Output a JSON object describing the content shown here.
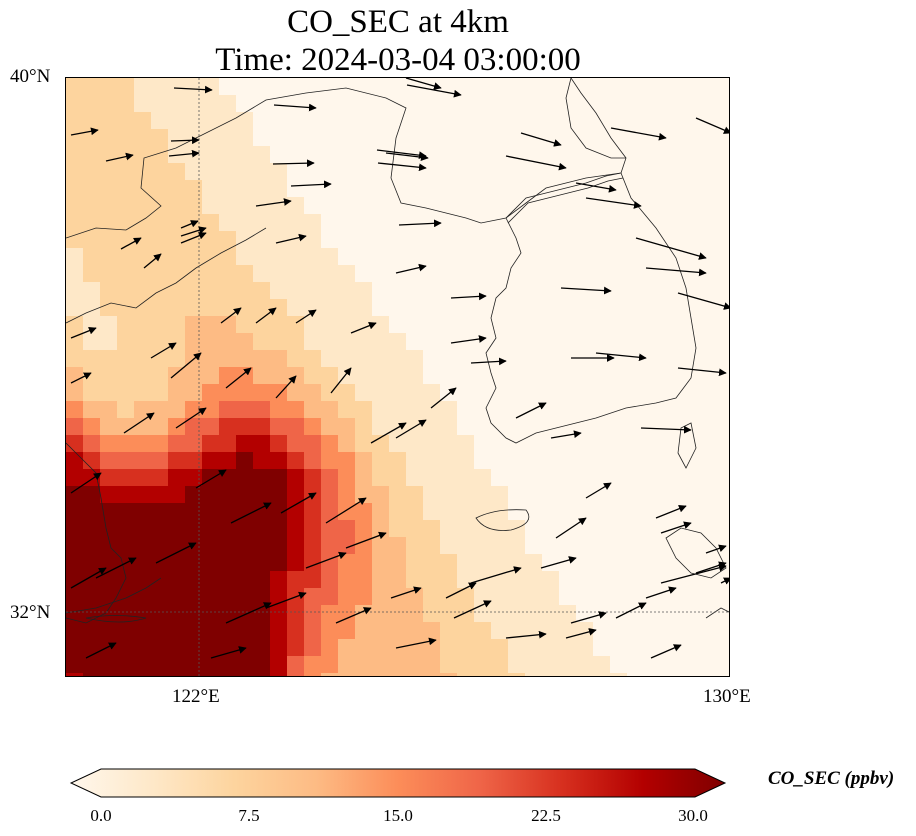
{
  "title": {
    "line1": "CO_SEC at 4km",
    "line2": "Time: 2024-03-04 03:00:00"
  },
  "map": {
    "lat_labels": [
      "40°N",
      "32°N"
    ],
    "lon_labels": [
      "122°E",
      "130°E"
    ],
    "extent_lon": [
      120,
      130
    ],
    "extent_lat": [
      31,
      40
    ],
    "gridlines": true,
    "gridline_style": "dotted"
  },
  "colorbar": {
    "label": "CO_SEC (ppbv)",
    "ticks": [
      "0.0",
      "7.5",
      "15.0",
      "22.5",
      "30.0"
    ],
    "min": 0,
    "max": 30,
    "extend": "both",
    "colormap": "OrRd",
    "colors": [
      "#fff7ec",
      "#fee8c8",
      "#fdd49e",
      "#fdbb84",
      "#fc8d59",
      "#ef6548",
      "#d7301f",
      "#b30000",
      "#7f0000"
    ]
  },
  "field_note": "Band of elevated CO_SEC oriented NW-SE; peak values (>30 ppbv) southwest of Korea over East China Sea; low values over eastern Korea and Japan Sea.",
  "wind": {
    "arrows": "prevailing westerly to southwesterly flow; stronger WSW arrows over the Yellow Sea and south"
  }
}
